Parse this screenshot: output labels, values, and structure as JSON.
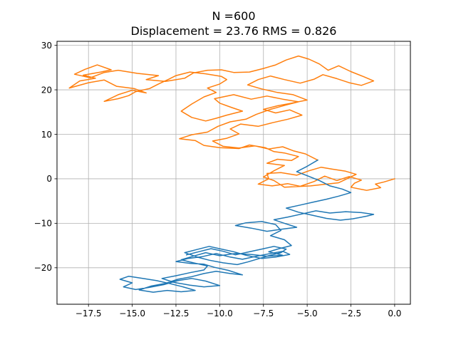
{
  "chart_data": {
    "type": "line",
    "title_line1": "N =600",
    "title_line2": "Displacement = 23.76 RMS = 0.826",
    "xlabel": "",
    "ylabel": "",
    "xlim": [
      -19.3,
      0.9
    ],
    "ylim": [
      -28.2,
      30.9
    ],
    "xticks": [
      -17.5,
      -15.0,
      -12.5,
      -10.0,
      -7.5,
      -5.0,
      -2.5,
      0.0
    ],
    "xtick_labels": [
      "−17.5",
      "−15.0",
      "−12.5",
      "−10.0",
      "−7.5",
      "−5.0",
      "−2.5",
      "0.0"
    ],
    "yticks": [
      -20,
      -10,
      0,
      10,
      20,
      30
    ],
    "ytick_labels": [
      "−20",
      "−10",
      "0",
      "10",
      "20",
      "30"
    ],
    "grid": true,
    "legend": "none",
    "series": [
      {
        "color": "#ff7f0e",
        "points": [
          [
            0.0,
            0.0
          ],
          [
            -0.6,
            -0.7
          ],
          [
            -1.1,
            -1.2
          ],
          [
            -0.8,
            -2.0
          ],
          [
            -1.6,
            -2.6
          ],
          [
            -2.5,
            -1.9
          ],
          [
            -2.3,
            -1.0
          ],
          [
            -1.9,
            -0.3
          ],
          [
            -2.6,
            0.5
          ],
          [
            -3.3,
            -0.4
          ],
          [
            -4.0,
            0.6
          ],
          [
            -4.6,
            -0.6
          ],
          [
            -5.4,
            -1.7
          ],
          [
            -6.1,
            -1.1
          ],
          [
            -7.0,
            -1.6
          ],
          [
            -7.8,
            -1.2
          ],
          [
            -7.2,
            0.0
          ],
          [
            -7.3,
            1.2
          ],
          [
            -6.5,
            1.4
          ],
          [
            -5.6,
            0.8
          ],
          [
            -4.9,
            1.8
          ],
          [
            -4.2,
            2.6
          ],
          [
            -3.6,
            2.2
          ],
          [
            -2.8,
            1.7
          ],
          [
            -2.2,
            1.0
          ],
          [
            -3.2,
            -0.9
          ],
          [
            -4.8,
            -1.6
          ],
          [
            -6.3,
            -1.9
          ],
          [
            -6.9,
            -0.4
          ],
          [
            -7.5,
            0.4
          ],
          [
            -6.9,
            1.8
          ],
          [
            -6.3,
            3.0
          ],
          [
            -7.3,
            3.5
          ],
          [
            -6.7,
            4.4
          ],
          [
            -5.9,
            4.1
          ],
          [
            -5.5,
            5.0
          ],
          [
            -6.3,
            5.8
          ],
          [
            -6.9,
            6.1
          ],
          [
            -7.4,
            7.0
          ],
          [
            -8.3,
            7.6
          ],
          [
            -8.9,
            6.8
          ],
          [
            -10.0,
            7.0
          ],
          [
            -10.9,
            7.5
          ],
          [
            -11.4,
            8.6
          ],
          [
            -12.3,
            9.0
          ],
          [
            -11.6,
            9.9
          ],
          [
            -10.7,
            10.5
          ],
          [
            -10.1,
            11.8
          ],
          [
            -9.4,
            12.8
          ],
          [
            -8.5,
            13.4
          ],
          [
            -7.9,
            14.5
          ],
          [
            -7.1,
            15.6
          ],
          [
            -6.2,
            16.6
          ],
          [
            -5.5,
            17.3
          ],
          [
            -6.4,
            17.9
          ],
          [
            -7.3,
            18.6
          ],
          [
            -8.2,
            17.9
          ],
          [
            -9.2,
            18.9
          ],
          [
            -10.3,
            18.0
          ],
          [
            -10.0,
            17.0
          ],
          [
            -9.3,
            16.0
          ],
          [
            -8.7,
            15.2
          ],
          [
            -9.6,
            14.3
          ],
          [
            -10.2,
            13.6
          ],
          [
            -10.8,
            13.0
          ],
          [
            -11.6,
            13.8
          ],
          [
            -12.2,
            15.2
          ],
          [
            -11.6,
            16.8
          ],
          [
            -10.9,
            18.4
          ],
          [
            -10.2,
            19.4
          ],
          [
            -10.7,
            20.4
          ],
          [
            -10.0,
            21.3
          ],
          [
            -9.6,
            22.3
          ],
          [
            -9.9,
            23.0
          ],
          [
            -10.8,
            23.6
          ],
          [
            -11.7,
            24.0
          ],
          [
            -12.5,
            23.2
          ],
          [
            -12.9,
            22.4
          ],
          [
            -13.5,
            21.3
          ],
          [
            -14.0,
            20.3
          ],
          [
            -14.8,
            19.6
          ],
          [
            -15.2,
            18.7
          ],
          [
            -15.8,
            18.0
          ],
          [
            -16.6,
            17.4
          ],
          [
            -15.8,
            18.9
          ],
          [
            -15.0,
            19.9
          ],
          [
            -14.2,
            19.3
          ],
          [
            -14.9,
            20.3
          ],
          [
            -15.9,
            20.8
          ],
          [
            -16.6,
            22.2
          ],
          [
            -17.5,
            21.6
          ],
          [
            -18.6,
            20.4
          ],
          [
            -18.0,
            22.0
          ],
          [
            -17.1,
            22.6
          ],
          [
            -17.8,
            23.3
          ],
          [
            -16.8,
            24.0
          ],
          [
            -16.2,
            24.5
          ],
          [
            -17.0,
            25.6
          ],
          [
            -17.7,
            24.6
          ],
          [
            -18.3,
            23.5
          ],
          [
            -17.4,
            22.7
          ],
          [
            -16.6,
            23.9
          ],
          [
            -15.8,
            24.4
          ],
          [
            -14.7,
            23.7
          ],
          [
            -13.5,
            23.2
          ],
          [
            -14.2,
            22.3
          ],
          [
            -13.1,
            21.9
          ],
          [
            -12.0,
            22.6
          ],
          [
            -11.5,
            23.8
          ],
          [
            -10.7,
            24.4
          ],
          [
            -9.9,
            24.5
          ],
          [
            -9.2,
            23.9
          ],
          [
            -8.3,
            24.0
          ],
          [
            -7.5,
            24.8
          ],
          [
            -6.8,
            25.6
          ],
          [
            -6.2,
            26.7
          ],
          [
            -5.5,
            27.6
          ],
          [
            -4.9,
            26.9
          ],
          [
            -4.3,
            25.8
          ],
          [
            -3.8,
            24.4
          ],
          [
            -3.2,
            25.4
          ],
          [
            -2.5,
            24.1
          ],
          [
            -1.8,
            23.0
          ],
          [
            -1.2,
            22.0
          ],
          [
            -1.9,
            21.0
          ],
          [
            -2.6,
            21.6
          ],
          [
            -3.3,
            22.5
          ],
          [
            -4.1,
            23.4
          ],
          [
            -4.6,
            22.4
          ],
          [
            -5.4,
            21.5
          ],
          [
            -6.3,
            22.3
          ],
          [
            -7.1,
            23.1
          ],
          [
            -7.8,
            22.3
          ],
          [
            -8.4,
            21.1
          ],
          [
            -7.6,
            20.2
          ],
          [
            -6.7,
            19.4
          ],
          [
            -5.8,
            18.9
          ],
          [
            -5.0,
            17.7
          ],
          [
            -5.9,
            17.0
          ],
          [
            -6.7,
            16.4
          ],
          [
            -7.5,
            15.6
          ],
          [
            -6.8,
            14.8
          ],
          [
            -6.0,
            15.5
          ],
          [
            -5.3,
            14.3
          ],
          [
            -6.1,
            13.4
          ],
          [
            -7.0,
            12.6
          ],
          [
            -7.8,
            11.8
          ],
          [
            -8.8,
            12.3
          ],
          [
            -9.4,
            11.2
          ],
          [
            -8.9,
            10.1
          ],
          [
            -9.6,
            9.1
          ],
          [
            -10.4,
            8.5
          ],
          [
            -9.8,
            7.3
          ],
          [
            -8.9,
            6.9
          ],
          [
            -8.0,
            7.4
          ],
          [
            -7.2,
            6.7
          ],
          [
            -6.4,
            7.2
          ],
          [
            -5.8,
            6.3
          ],
          [
            -5.1,
            5.6
          ],
          [
            -4.4,
            4.2
          ]
        ]
      },
      {
        "color": "#1f77b4",
        "points": [
          [
            -4.4,
            4.2
          ],
          [
            -5.0,
            2.8
          ],
          [
            -5.6,
            1.6
          ],
          [
            -5.0,
            0.7
          ],
          [
            -4.3,
            -0.4
          ],
          [
            -3.7,
            -1.6
          ],
          [
            -3.0,
            -2.3
          ],
          [
            -2.5,
            -3.1
          ],
          [
            -3.2,
            -3.9
          ],
          [
            -3.9,
            -4.6
          ],
          [
            -4.6,
            -5.2
          ],
          [
            -5.4,
            -5.9
          ],
          [
            -6.2,
            -6.6
          ],
          [
            -5.5,
            -7.5
          ],
          [
            -4.7,
            -8.2
          ],
          [
            -3.9,
            -8.9
          ],
          [
            -3.1,
            -9.3
          ],
          [
            -2.4,
            -9.0
          ],
          [
            -1.6,
            -8.4
          ],
          [
            -1.2,
            -8.0
          ],
          [
            -1.9,
            -7.6
          ],
          [
            -2.8,
            -7.4
          ],
          [
            -3.7,
            -7.7
          ],
          [
            -4.5,
            -7.2
          ],
          [
            -5.3,
            -7.9
          ],
          [
            -6.1,
            -8.6
          ],
          [
            -6.9,
            -9.2
          ],
          [
            -6.3,
            -10.0
          ],
          [
            -5.6,
            -10.9
          ],
          [
            -6.4,
            -11.3
          ],
          [
            -7.3,
            -11.8
          ],
          [
            -8.2,
            -11.1
          ],
          [
            -9.1,
            -10.5
          ],
          [
            -8.5,
            -9.9
          ],
          [
            -7.6,
            -9.6
          ],
          [
            -6.8,
            -10.3
          ],
          [
            -6.5,
            -11.6
          ],
          [
            -7.1,
            -12.8
          ],
          [
            -6.3,
            -13.7
          ],
          [
            -5.9,
            -15.0
          ],
          [
            -6.6,
            -15.7
          ],
          [
            -7.2,
            -16.4
          ],
          [
            -6.4,
            -17.2
          ],
          [
            -7.3,
            -17.4
          ],
          [
            -8.2,
            -17.0
          ],
          [
            -9.1,
            -16.8
          ],
          [
            -10.0,
            -17.3
          ],
          [
            -10.8,
            -16.6
          ],
          [
            -11.6,
            -17.5
          ],
          [
            -12.2,
            -18.2
          ],
          [
            -11.5,
            -18.9
          ],
          [
            -10.7,
            -19.6
          ],
          [
            -10.9,
            -20.5
          ],
          [
            -11.7,
            -21.1
          ],
          [
            -12.5,
            -21.8
          ],
          [
            -13.3,
            -22.4
          ],
          [
            -12.6,
            -23.3
          ],
          [
            -11.7,
            -23.9
          ],
          [
            -10.9,
            -24.3
          ],
          [
            -10.0,
            -24.0
          ],
          [
            -10.8,
            -23.0
          ],
          [
            -11.6,
            -22.4
          ],
          [
            -12.4,
            -22.9
          ],
          [
            -13.2,
            -23.8
          ],
          [
            -14.0,
            -24.4
          ],
          [
            -14.8,
            -24.9
          ],
          [
            -15.5,
            -24.3
          ],
          [
            -15.0,
            -23.4
          ],
          [
            -15.7,
            -22.6
          ],
          [
            -15.2,
            -21.9
          ],
          [
            -14.4,
            -22.4
          ],
          [
            -13.6,
            -22.9
          ],
          [
            -12.8,
            -23.6
          ],
          [
            -12.1,
            -24.3
          ],
          [
            -11.4,
            -25.1
          ],
          [
            -12.2,
            -25.4
          ],
          [
            -13.0,
            -25.1
          ],
          [
            -13.8,
            -25.5
          ],
          [
            -14.6,
            -25.0
          ],
          [
            -13.9,
            -24.1
          ],
          [
            -13.1,
            -23.5
          ],
          [
            -12.4,
            -22.6
          ],
          [
            -11.6,
            -22.0
          ],
          [
            -10.9,
            -21.3
          ],
          [
            -10.2,
            -20.8
          ],
          [
            -9.4,
            -21.3
          ],
          [
            -8.7,
            -21.6
          ],
          [
            -9.5,
            -20.6
          ],
          [
            -10.3,
            -19.9
          ],
          [
            -10.9,
            -19.2
          ],
          [
            -11.7,
            -19.0
          ],
          [
            -12.5,
            -18.6
          ],
          [
            -11.8,
            -17.9
          ],
          [
            -11.0,
            -17.5
          ],
          [
            -10.2,
            -16.8
          ],
          [
            -9.4,
            -17.6
          ],
          [
            -8.7,
            -18.1
          ],
          [
            -7.9,
            -17.4
          ],
          [
            -7.1,
            -16.8
          ],
          [
            -6.4,
            -16.3
          ],
          [
            -6.0,
            -17.0
          ],
          [
            -6.8,
            -17.6
          ],
          [
            -7.6,
            -17.9
          ],
          [
            -8.5,
            -17.2
          ],
          [
            -9.2,
            -16.4
          ],
          [
            -9.9,
            -15.8
          ],
          [
            -10.6,
            -15.2
          ],
          [
            -11.3,
            -15.9
          ],
          [
            -12.0,
            -16.6
          ],
          [
            -11.2,
            -17.7
          ],
          [
            -10.6,
            -18.3
          ],
          [
            -9.8,
            -18.9
          ],
          [
            -9.0,
            -19.3
          ],
          [
            -8.4,
            -18.7
          ],
          [
            -7.8,
            -18.0
          ],
          [
            -7.2,
            -17.3
          ],
          [
            -6.5,
            -16.6
          ],
          [
            -6.2,
            -15.8
          ],
          [
            -6.9,
            -15.2
          ],
          [
            -7.6,
            -15.8
          ],
          [
            -8.4,
            -16.5
          ],
          [
            -9.1,
            -17.1
          ],
          [
            -9.8,
            -16.3
          ],
          [
            -10.5,
            -15.7
          ],
          [
            -11.2,
            -16.4
          ],
          [
            -11.9,
            -17.1
          ]
        ]
      }
    ]
  }
}
